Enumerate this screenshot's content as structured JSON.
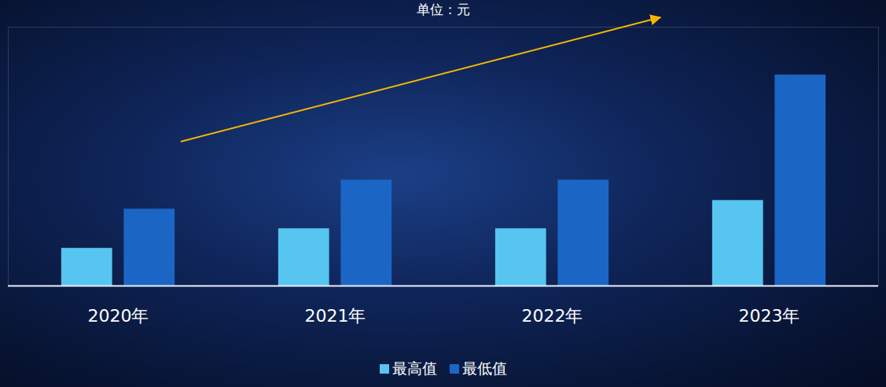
{
  "chart_data": {
    "type": "bar",
    "subtitle": "单位：元",
    "categories": [
      "2020年",
      "2021年",
      "2022年",
      "2023年"
    ],
    "series": [
      {
        "name": "最高值",
        "color": "#56c5f0",
        "values": [
          4.8,
          7.3,
          7.3,
          10.9
        ]
      },
      {
        "name": "最低值",
        "color": "#1b66c4",
        "values": [
          9.8,
          13.5,
          13.5,
          26.9
        ]
      }
    ],
    "ylim": [
      0,
      33
    ],
    "yticks": [],
    "tick_labels": "x",
    "legend": "bottom",
    "grid": false
  }
}
